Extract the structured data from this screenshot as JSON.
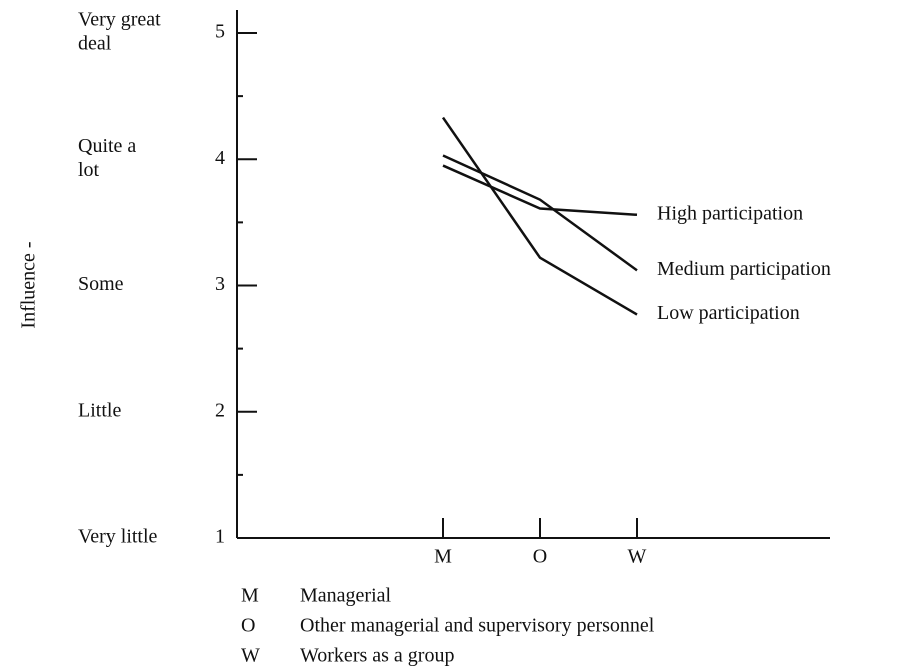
{
  "chart_data": {
    "type": "line",
    "y_label": "Influence -",
    "categories": [
      "M",
      "O",
      "W"
    ],
    "ylim": [
      1,
      5
    ],
    "yticks": [
      1,
      2,
      3,
      4,
      5
    ],
    "yminorticks": [
      1.5,
      2.5,
      3.5,
      4.5
    ],
    "y_levels": [
      {
        "value": 5,
        "lines": [
          "Very great",
          "deal"
        ]
      },
      {
        "value": 4,
        "lines": [
          "Quite a",
          "lot"
        ]
      },
      {
        "value": 3,
        "lines": [
          "Some"
        ]
      },
      {
        "value": 2,
        "lines": [
          "Little"
        ]
      },
      {
        "value": 1,
        "lines": [
          "Very little"
        ]
      }
    ],
    "series": [
      {
        "name": "High participation",
        "color": "#111111",
        "values": [
          3.95,
          3.61,
          3.56
        ]
      },
      {
        "name": "Medium participation",
        "color": "#111111",
        "values": [
          4.03,
          3.68,
          3.12
        ]
      },
      {
        "name": "Low participation",
        "color": "#111111",
        "values": [
          4.33,
          3.22,
          2.77
        ]
      }
    ],
    "key": [
      {
        "code": "M",
        "text": "Managerial"
      },
      {
        "code": "O",
        "text": "Other managerial and supervisory personnel"
      },
      {
        "code": "W",
        "text": "Workers as a group"
      }
    ]
  }
}
